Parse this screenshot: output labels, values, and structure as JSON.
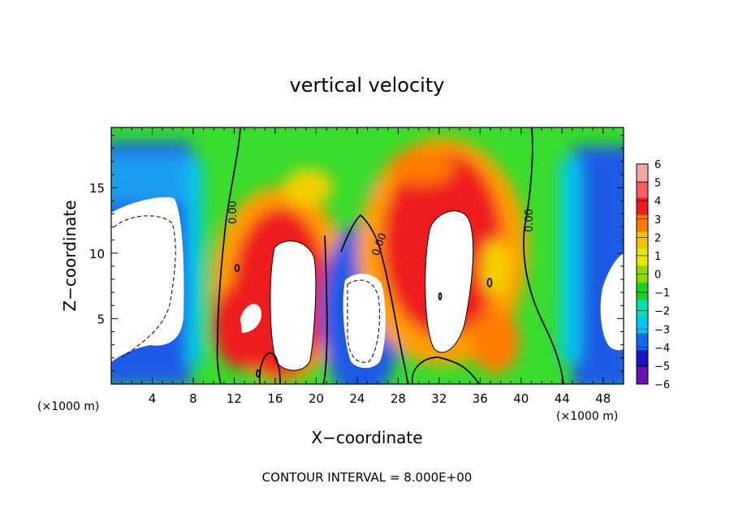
{
  "chart_data": {
    "type": "heatmap",
    "title": "vertical velocity",
    "xlabel": "X−coordinate",
    "ylabel": "Z−coordinate",
    "x_unit": "(×1000 m)",
    "y_unit": "(×1000 m)",
    "xlim": [
      0,
      50
    ],
    "ylim": [
      0,
      19.6
    ],
    "x_ticks": [
      "4",
      "8",
      "12",
      "16",
      "20",
      "24",
      "28",
      "32",
      "36",
      "40",
      "44",
      "48"
    ],
    "x_tick_values": [
      4,
      8,
      12,
      16,
      20,
      24,
      28,
      32,
      36,
      40,
      44,
      48
    ],
    "y_ticks": [
      "5",
      "10",
      "15"
    ],
    "y_tick_values": [
      5,
      10,
      15
    ],
    "colorbar": {
      "min": -6,
      "max": 6,
      "labels": [
        "6",
        "5",
        "4",
        "3",
        "2",
        "1",
        "0",
        "−1",
        "−2",
        "−3",
        "−4",
        "−5",
        "−6"
      ],
      "values": [
        6,
        5,
        4,
        3,
        2,
        1,
        0,
        -1,
        -2,
        -3,
        -4,
        -5,
        -6
      ],
      "colors": [
        "#f4a6a6",
        "#f46060",
        "#ee1a1a",
        "#ff7a00",
        "#f0c400",
        "#eaea00",
        "#8cdc00",
        "#18d418",
        "#00e0b0",
        "#00c8ee",
        "#1068f0",
        "#1414c8",
        "#6a10b0"
      ]
    },
    "contour_label": "0.00",
    "contour_interval_text": "CONTOUR INTERVAL = 8.000E+00",
    "features": [
      {
        "kind": "updraft",
        "x": 17.5,
        "z": 6.5,
        "value_gt": 6
      },
      {
        "kind": "updraft",
        "x": 32.5,
        "z": 7.5,
        "value_gt": 6
      },
      {
        "kind": "downdraft",
        "x": 24.5,
        "z": 4.5,
        "value_lt": -6
      },
      {
        "kind": "downdraft",
        "x": 4.0,
        "z": 8.5,
        "value_lt": -6
      },
      {
        "kind": "downdraft",
        "x": 48.5,
        "z": 5.5,
        "value_lt": -6
      }
    ]
  }
}
